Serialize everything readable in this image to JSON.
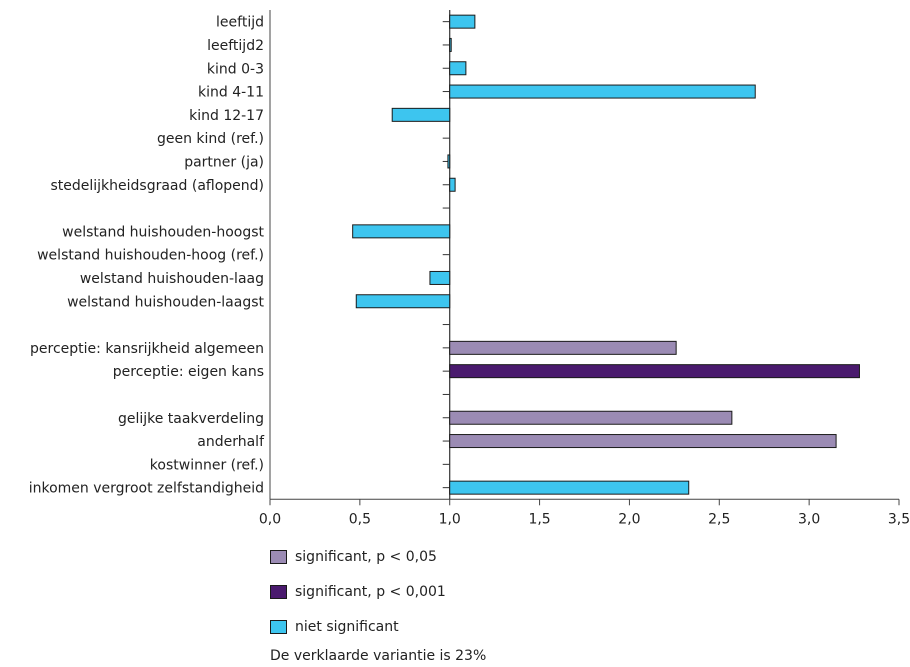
{
  "chart_data": {
    "type": "bar",
    "orientation": "horizontal",
    "categories": [
      "leeftijd",
      "leeftijd2",
      "kind 0-3",
      "kind 4-11",
      "kind 12-17",
      "geen kind (ref.)",
      "partner (ja)",
      "stedelijkheidsgraad (aflopend)",
      "",
      "welstand huishouden-hoogst",
      "welstand huishouden-hoog (ref.)",
      "welstand huishouden-laag",
      "welstand huishouden-laagst",
      "",
      "perceptie: kansrijkheid algemeen",
      "perceptie: eigen kans",
      "",
      "gelijke taakverdeling",
      "anderhalf",
      "kostwinner (ref.)",
      "inkomen vergroot zelfstandigheid"
    ],
    "values": [
      1.14,
      1.0,
      1.09,
      2.7,
      0.68,
      null,
      0.99,
      1.03,
      null,
      0.46,
      null,
      0.89,
      0.48,
      null,
      2.26,
      3.28,
      null,
      2.57,
      3.15,
      null,
      2.33
    ],
    "significance": [
      "niet",
      "niet",
      "niet",
      "niet",
      "niet",
      null,
      "niet",
      "niet",
      null,
      "niet",
      null,
      "niet",
      "niet",
      null,
      "p05",
      "p001",
      null,
      "p05",
      "p05",
      null,
      "niet"
    ],
    "baseline": 1.0,
    "xlim": [
      0.0,
      3.5
    ],
    "xticks": [
      "0,0",
      "0,5",
      "1,0",
      "1,5",
      "2,0",
      "2,5",
      "3,0",
      "3,5"
    ],
    "xtick_values": [
      0.0,
      0.5,
      1.0,
      1.5,
      2.0,
      2.5,
      3.0,
      3.5
    ],
    "grid": false,
    "legend_placement": "bottom",
    "colors": {
      "p05": "#9b8bb4",
      "p001": "#4a1a6e",
      "niet": "#3dc5ef",
      "edge": "#1a1a1a"
    }
  },
  "legend": [
    {
      "key": "p05",
      "label": "significant, p < 0,05"
    },
    {
      "key": "p001",
      "label": "significant, p < 0,001"
    },
    {
      "key": "niet",
      "label": "niet significant"
    }
  ],
  "note": "De verklaarde variantie is 23%"
}
